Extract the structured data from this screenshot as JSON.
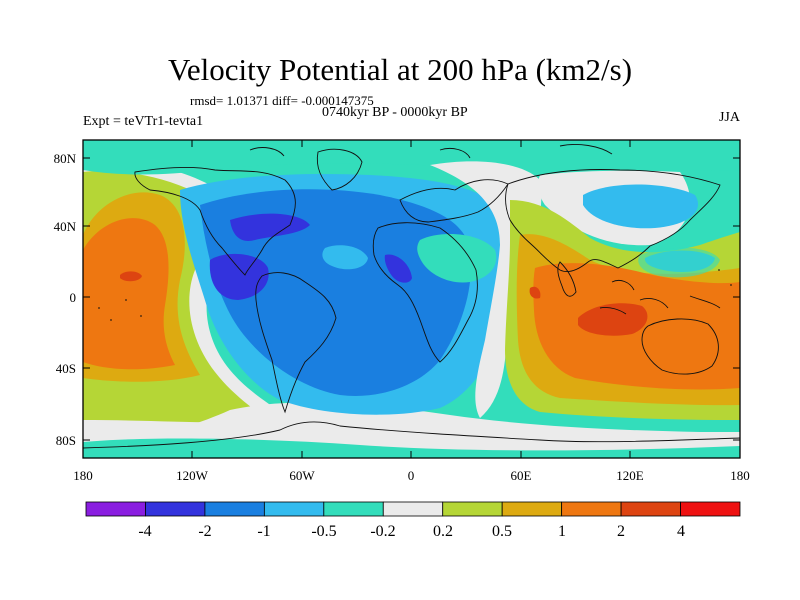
{
  "title": "Velocity Potential at 200 hPa (km2/s)",
  "rmsd_text": "rmsd= 1.01371 diff= -0.000147375",
  "period": "0740kyr BP - 0000kyr BP",
  "experiment": "Expt = teVTr1-tevta1",
  "season": "JJA",
  "lat_ticks": [
    "80N",
    "40N",
    "0",
    "40S",
    "80S"
  ],
  "lon_ticks": [
    "180",
    "120W",
    "60W",
    "0",
    "60E",
    "120E",
    "180"
  ],
  "colorbar": {
    "labels": [
      "-4",
      "-2",
      "-1",
      "-0.5",
      "-0.2",
      "0.2",
      "0.5",
      "1",
      "2",
      "4"
    ],
    "colors": [
      "#8a1ee0",
      "#3333dd",
      "#1a7fe0",
      "#33bbee",
      "#33ddbb",
      "#ebebeb",
      "#b5d636",
      "#ddaa11",
      "#ee7711",
      "#dd4411",
      "#ee1111"
    ]
  },
  "palette": {
    "neg4": "#8a1ee0",
    "neg2": "#3333dd",
    "neg1": "#1a7fe0",
    "neg05": "#33bbee",
    "neg02": "#33ddbb",
    "zero": "#ebebeb",
    "pos02": "#b5d636",
    "pos05": "#ddaa11",
    "pos1": "#ee7711",
    "pos2": "#dd4411",
    "pos4": "#ee1111"
  }
}
